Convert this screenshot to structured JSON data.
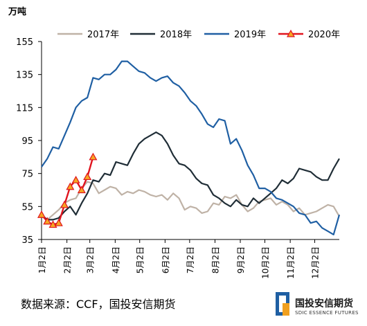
{
  "chart_data": {
    "type": "line",
    "unit_label": "万吨",
    "ylim": [
      35,
      155
    ],
    "yticks": [
      35,
      55,
      75,
      95,
      115,
      135,
      155
    ],
    "x_range": [
      0,
      52
    ],
    "xticks": [
      {
        "label": "1月2日",
        "x": 0
      },
      {
        "label": "2月2日",
        "x": 4.43
      },
      {
        "label": "3月2日",
        "x": 8.43
      },
      {
        "label": "4月2日",
        "x": 12.86
      },
      {
        "label": "5月2日",
        "x": 17.14
      },
      {
        "label": "6月2日",
        "x": 21.57
      },
      {
        "label": "7月2日",
        "x": 25.86
      },
      {
        "label": "8月2日",
        "x": 30.29
      },
      {
        "label": "9月2日",
        "x": 34.71
      },
      {
        "label": "10月2日",
        "x": 39
      },
      {
        "label": "11月2日",
        "x": 43.43
      },
      {
        "label": "12月2日",
        "x": 47.71
      }
    ],
    "grid": false,
    "legend_position": "top",
    "series": [
      {
        "name": "2017年",
        "color": "#bfb2a6",
        "marker": "none",
        "values": [
          49,
          47,
          50,
          53,
          57,
          59,
          60,
          66,
          70,
          69,
          63,
          65,
          67,
          66,
          62,
          64,
          63,
          65,
          64,
          62,
          61,
          62,
          59,
          63,
          60,
          53,
          55,
          54,
          51,
          52,
          57,
          56,
          61,
          60,
          62,
          56,
          52,
          54,
          58,
          59,
          60,
          56,
          58,
          56,
          52,
          54,
          50,
          51,
          52,
          54,
          56,
          55,
          49
        ]
      },
      {
        "name": "2018年",
        "color": "#1f2d36",
        "marker": "none",
        "values": [
          50,
          47,
          47,
          48,
          52,
          55,
          50,
          57,
          63,
          71,
          70,
          75,
          74,
          82,
          81,
          80,
          87,
          93,
          96,
          98,
          100,
          98,
          93,
          86,
          81,
          80,
          77,
          72,
          69,
          68,
          62,
          60,
          57,
          55,
          59,
          56,
          55,
          60,
          57,
          60,
          63,
          66,
          71,
          69,
          72,
          78,
          77,
          76,
          73,
          71,
          71,
          78,
          84
        ]
      },
      {
        "name": "2019年",
        "color": "#1f5fa3",
        "marker": "none",
        "values": [
          79,
          84,
          91,
          90,
          98,
          106,
          115,
          119,
          121,
          133,
          132,
          135,
          135,
          138,
          143,
          143,
          140,
          137,
          136,
          133,
          131,
          133,
          134,
          130,
          128,
          124,
          119,
          116,
          111,
          105,
          103,
          108,
          107,
          93,
          96,
          89,
          80,
          74,
          66,
          66,
          64,
          60,
          59,
          57,
          55,
          51,
          50,
          45,
          46,
          42,
          40,
          38,
          50
        ]
      },
      {
        "name": "2020年",
        "color": "#e0141e",
        "marker": "triangle",
        "values": [
          50,
          46,
          44,
          45,
          56,
          67,
          71,
          65,
          73,
          85
        ]
      }
    ]
  },
  "footer": {
    "source": "数据来源：CCF，国投安信期货"
  },
  "logo": {
    "name": "国投安信期货",
    "sub": "SDIC ESSENCE FUTURES"
  }
}
